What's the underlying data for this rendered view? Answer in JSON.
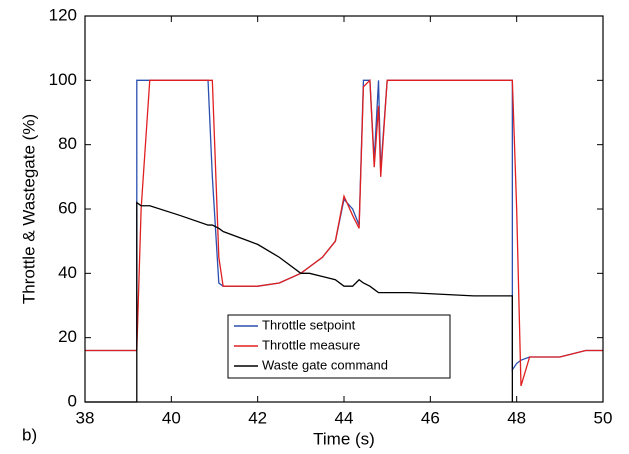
{
  "chart_data": {
    "type": "line",
    "xlabel": "Time (s)",
    "ylabel": "Throttle & Wastegate (%)",
    "annotation": "b)",
    "xlim": [
      38,
      50
    ],
    "xticks": [
      38,
      40,
      42,
      44,
      46,
      48,
      50
    ],
    "ylim": [
      0,
      120
    ],
    "yticks": [
      0,
      20,
      40,
      60,
      80,
      100,
      120
    ],
    "grid": false,
    "legend": "lower center",
    "x": [
      38,
      39.2,
      39.2,
      39.3,
      39.5,
      40.2,
      40.85,
      40.95,
      41.1,
      41.2,
      41.8,
      42,
      42.5,
      43,
      43.2,
      43.5,
      43.8,
      44,
      44.2,
      44.35,
      44.45,
      44.6,
      44.7,
      44.8,
      44.85,
      45,
      45.5,
      47,
      47.9,
      47.9,
      48.0,
      48.1,
      48.3,
      49,
      49.6,
      50
    ],
    "series": [
      {
        "name": "Throttle setpoint",
        "color": "#2b4fb0",
        "values": [
          16,
          16,
          100,
          100,
          100,
          100,
          100,
          70,
          37,
          36,
          36,
          36,
          37,
          40,
          42,
          45,
          50,
          63,
          60,
          55,
          100,
          100,
          75,
          100,
          72,
          100,
          100,
          100,
          100,
          10,
          12,
          13,
          14,
          14,
          16,
          16
        ]
      },
      {
        "name": "Throttle measure",
        "color": "#e02020",
        "values": [
          16,
          16,
          16,
          60,
          100,
          100,
          100,
          100,
          45,
          36,
          36,
          36,
          37,
          40,
          42,
          45,
          50,
          64,
          58,
          54,
          98,
          100,
          73,
          92,
          70,
          100,
          100,
          100,
          100,
          100,
          60,
          5,
          14,
          14,
          16,
          16
        ]
      },
      {
        "name": "Waste gate command",
        "color": "#000000",
        "values": [
          0,
          0,
          62,
          61,
          61,
          58,
          55,
          55,
          54,
          53,
          50,
          49,
          45,
          40,
          40,
          39,
          38,
          36,
          36,
          38,
          37,
          36,
          35,
          34,
          34,
          34,
          34,
          33,
          33,
          0,
          null,
          null,
          null,
          null,
          null,
          null
        ]
      }
    ]
  }
}
